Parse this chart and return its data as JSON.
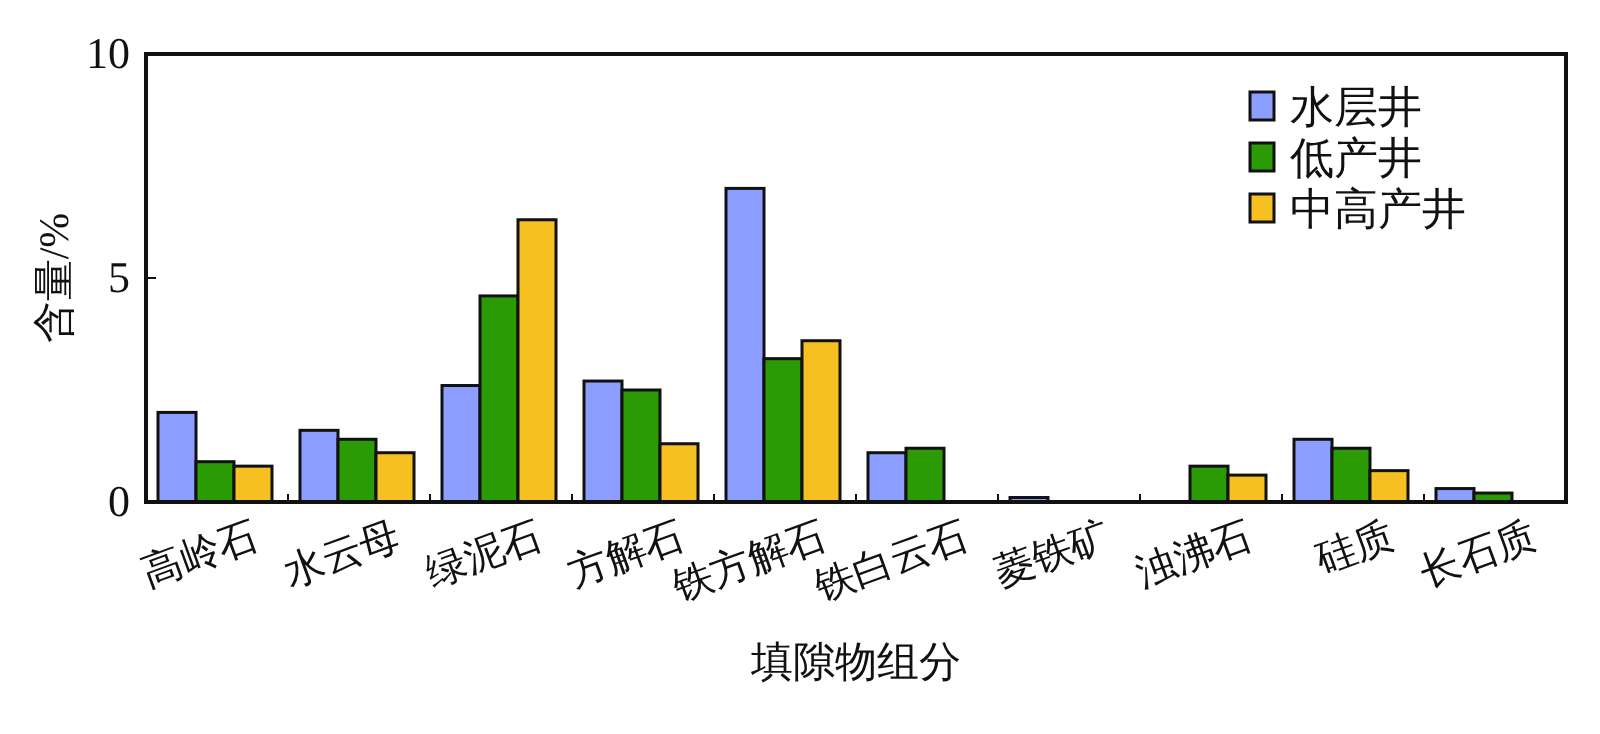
{
  "chart_data": {
    "type": "bar",
    "xlabel": "填隙物组分",
    "ylabel": "含量/%",
    "categories": [
      "高岭石",
      "水云母",
      "绿泥石",
      "方解石",
      "铁方解石",
      "铁白云石",
      "菱铁矿",
      "浊沸石",
      "硅质",
      "长石质"
    ],
    "series": [
      {
        "name": "水层井",
        "color": "#8c9eff",
        "values": [
          2.0,
          1.6,
          2.6,
          2.7,
          7.0,
          1.1,
          0.1,
          null,
          1.4,
          0.3
        ]
      },
      {
        "name": "低产井",
        "color": "#2a9a05",
        "values": [
          0.9,
          1.4,
          4.6,
          2.5,
          3.2,
          1.2,
          null,
          0.8,
          1.2,
          0.2
        ]
      },
      {
        "name": "中高产井",
        "color": "#f5c020",
        "values": [
          0.8,
          1.1,
          6.3,
          1.3,
          3.6,
          null,
          null,
          0.6,
          0.7,
          null
        ]
      }
    ],
    "ylim": [
      0,
      10
    ],
    "yticks": [
      0,
      5,
      10
    ],
    "legend": "top right"
  }
}
